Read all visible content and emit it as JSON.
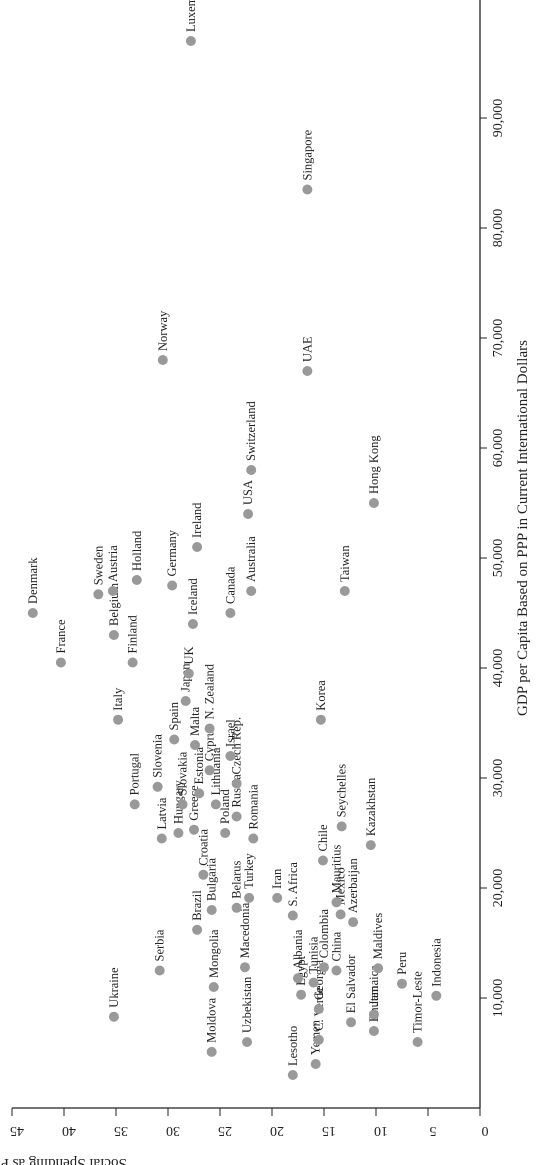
{
  "chart_data": {
    "type": "scatter",
    "title": "",
    "xlabel": "GDP per Capita Based on PPP in Current International Dollars",
    "ylabel": "Social Spending as Percentage of GDP",
    "xlim": [
      0,
      100000
    ],
    "ylim": [
      0,
      45
    ],
    "xticks": [
      "10,000",
      "20,000",
      "30,000",
      "40,000",
      "50,000",
      "60,000",
      "70,000",
      "80,000",
      "90,000"
    ],
    "yticks": [
      "0",
      "5",
      "10",
      "15",
      "20",
      "25",
      "30",
      "35",
      "40",
      "45"
    ],
    "grid": false,
    "legend": "none",
    "point_color": "#999999",
    "points": [
      {
        "label": "Ukraine",
        "x": 8300,
        "y": 35.2
      },
      {
        "label": "Moldova",
        "x": 5100,
        "y": 25.8
      },
      {
        "label": "Serbia",
        "x": 12500,
        "y": 30.8
      },
      {
        "label": "Mongolia",
        "x": 11000,
        "y": 25.6
      },
      {
        "label": "Uzbekistan",
        "x": 6000,
        "y": 22.4
      },
      {
        "label": "Lesotho",
        "x": 3000,
        "y": 18.0
      },
      {
        "label": "Yemen",
        "x": 4000,
        "y": 15.8
      },
      {
        "label": "Bhutan",
        "x": 7000,
        "y": 10.2
      },
      {
        "label": "Jamaica",
        "x": 8500,
        "y": 10.2
      },
      {
        "label": "Timor-Leste",
        "x": 6000,
        "y": 6.0
      },
      {
        "label": "C. Verde",
        "x": 6200,
        "y": 15.5
      },
      {
        "label": "El Salvador",
        "x": 7800,
        "y": 12.4
      },
      {
        "label": "Indonesia",
        "x": 10200,
        "y": 4.2
      },
      {
        "label": "Peru",
        "x": 11300,
        "y": 7.5
      },
      {
        "label": "Maldives",
        "x": 12700,
        "y": 9.8
      },
      {
        "label": "Egypt",
        "x": 10300,
        "y": 17.2
      },
      {
        "label": "Georgia",
        "x": 9000,
        "y": 15.5
      },
      {
        "label": "Tunisia",
        "x": 11400,
        "y": 16.0
      },
      {
        "label": "Albania",
        "x": 11800,
        "y": 17.5
      },
      {
        "label": "Colombia",
        "x": 12800,
        "y": 15.0
      },
      {
        "label": "China",
        "x": 12500,
        "y": 13.8
      },
      {
        "label": "Macedonia",
        "x": 12800,
        "y": 22.6
      },
      {
        "label": "Turkey",
        "x": 19100,
        "y": 22.2
      },
      {
        "label": "Iran",
        "x": 19100,
        "y": 19.5
      },
      {
        "label": "S. Africa",
        "x": 17500,
        "y": 18.0
      },
      {
        "label": "Azerbaijan",
        "x": 16900,
        "y": 12.2
      },
      {
        "label": "Mexico",
        "x": 17600,
        "y": 13.4
      },
      {
        "label": "Mauritius",
        "x": 18700,
        "y": 13.8
      },
      {
        "label": "Chile",
        "x": 22500,
        "y": 15.1
      },
      {
        "label": "Seychelles",
        "x": 25600,
        "y": 13.3
      },
      {
        "label": "Kazakhstan",
        "x": 23900,
        "y": 10.5
      },
      {
        "label": "Brazil",
        "x": 16200,
        "y": 27.2
      },
      {
        "label": "Bulgaria",
        "x": 18000,
        "y": 25.8
      },
      {
        "label": "Belarus",
        "x": 18200,
        "y": 23.4
      },
      {
        "label": "Latvia",
        "x": 24500,
        "y": 30.6
      },
      {
        "label": "Croatia",
        "x": 21200,
        "y": 26.6
      },
      {
        "label": "Hungary",
        "x": 25000,
        "y": 29.0
      },
      {
        "label": "Greece",
        "x": 25300,
        "y": 27.5
      },
      {
        "label": "Poland",
        "x": 25000,
        "y": 24.5
      },
      {
        "label": "Portugal",
        "x": 27600,
        "y": 33.2
      },
      {
        "label": "Slovenia",
        "x": 29200,
        "y": 31.0
      },
      {
        "label": "Slovakia",
        "x": 27600,
        "y": 28.6
      },
      {
        "label": "Estonia",
        "x": 28600,
        "y": 27.0
      },
      {
        "label": "Lithuania",
        "x": 27600,
        "y": 25.4
      },
      {
        "label": "Russia",
        "x": 26500,
        "y": 23.4
      },
      {
        "label": "Romania",
        "x": 24500,
        "y": 21.8
      },
      {
        "label": "Cyprus",
        "x": 30700,
        "y": 26.0
      },
      {
        "label": "Malta",
        "x": 33000,
        "y": 27.4
      },
      {
        "label": "Spain",
        "x": 33500,
        "y": 29.4
      },
      {
        "label": "Czech Rep.",
        "x": 29500,
        "y": 23.4
      },
      {
        "label": "Israel",
        "x": 32000,
        "y": 24.0
      },
      {
        "label": "Italy",
        "x": 35300,
        "y": 34.8
      },
      {
        "label": "Korea",
        "x": 35300,
        "y": 15.3
      },
      {
        "label": "Finland",
        "x": 40500,
        "y": 33.4
      },
      {
        "label": "France",
        "x": 40500,
        "y": 40.3
      },
      {
        "label": "Japan",
        "x": 37000,
        "y": 28.3
      },
      {
        "label": "N. Zealand",
        "x": 34500,
        "y": 26.0
      },
      {
        "label": "UK",
        "x": 39500,
        "y": 28.0
      },
      {
        "label": "Iceland",
        "x": 44000,
        "y": 27.6
      },
      {
        "label": "Belgium",
        "x": 43000,
        "y": 35.2
      },
      {
        "label": "Denmark",
        "x": 45000,
        "y": 43.0
      },
      {
        "label": "Sweden",
        "x": 46700,
        "y": 36.7
      },
      {
        "label": "Austria",
        "x": 47000,
        "y": 35.3
      },
      {
        "label": "Holland",
        "x": 48000,
        "y": 33.0
      },
      {
        "label": "Germany",
        "x": 47500,
        "y": 29.6
      },
      {
        "label": "Canada",
        "x": 45000,
        "y": 24.0
      },
      {
        "label": "Australia",
        "x": 47000,
        "y": 22.0
      },
      {
        "label": "Taiwan",
        "x": 47000,
        "y": 13.0
      },
      {
        "label": "Ireland",
        "x": 51000,
        "y": 27.2
      },
      {
        "label": "USA",
        "x": 54000,
        "y": 22.3
      },
      {
        "label": "Hong Kong",
        "x": 55000,
        "y": 10.2
      },
      {
        "label": "Switzerland",
        "x": 58000,
        "y": 22.0
      },
      {
        "label": "Norway",
        "x": 68000,
        "y": 30.5
      },
      {
        "label": "UAE",
        "x": 67000,
        "y": 16.6
      },
      {
        "label": "Singapore",
        "x": 83500,
        "y": 16.6
      },
      {
        "label": "Luxembourg",
        "x": 97000,
        "y": 27.8
      }
    ]
  }
}
